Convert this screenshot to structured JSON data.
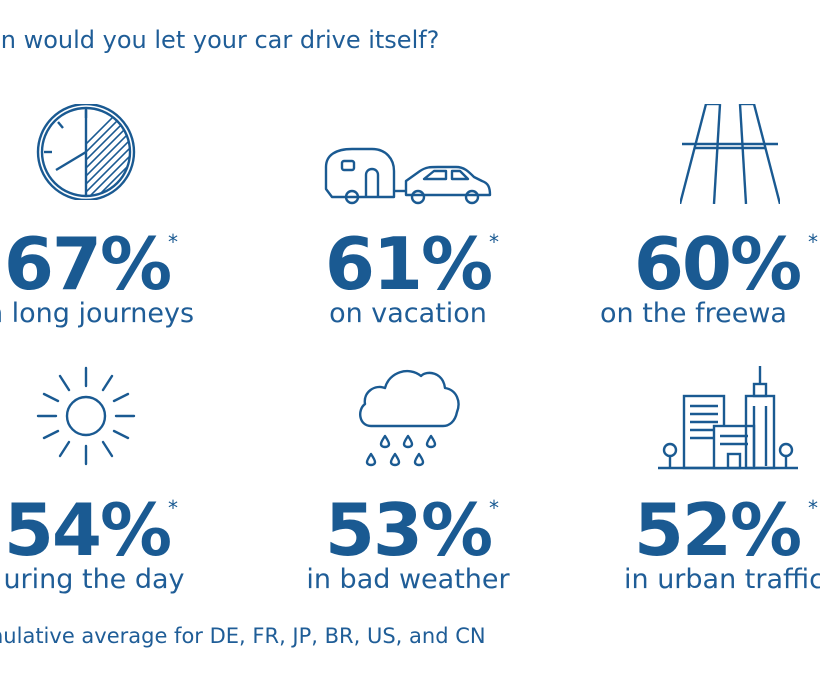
{
  "title": "en would you let your car drive itself?",
  "chart_data": {
    "type": "table",
    "title": "en would you let your car drive itself?",
    "items": [
      {
        "value": 67,
        "display": "67%",
        "label": "n long journeys",
        "icon": "clock-icon"
      },
      {
        "value": 61,
        "display": "61%",
        "label": "on vacation",
        "icon": "car-with-caravan-icon"
      },
      {
        "value": 60,
        "display": "60%",
        "label": "on the freewa",
        "icon": "freeway-icon"
      },
      {
        "value": 54,
        "display": "54%",
        "label": "uring the day",
        "icon": "sun-icon"
      },
      {
        "value": 53,
        "display": "53%",
        "label": "in bad weather",
        "icon": "rain-cloud-icon"
      },
      {
        "value": 52,
        "display": "52%",
        "label": "in urban traffic",
        "icon": "city-icon"
      }
    ],
    "asterisk": "*",
    "footnote": "nulative average for DE, FR, JP, BR, US, and CN"
  },
  "colors": {
    "primary": "#1a5a92"
  }
}
